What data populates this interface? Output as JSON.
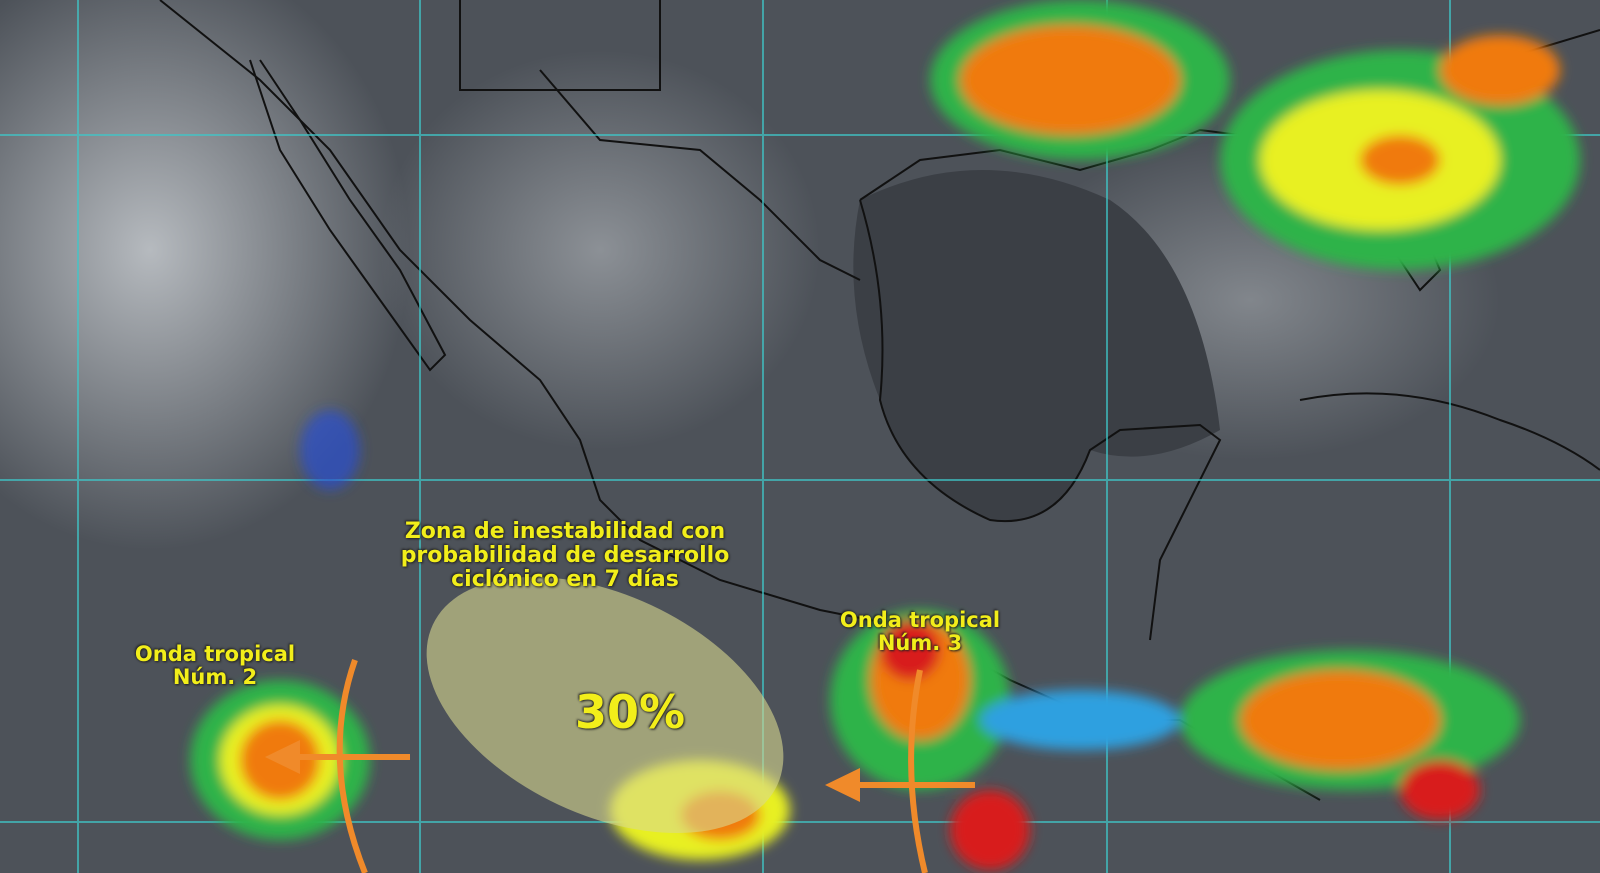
{
  "annotations": {
    "zone": {
      "lines": [
        "Zona de inestabilidad con",
        "probabilidad de desarrollo",
        "ciclónico en 7 días"
      ],
      "probability": "30%"
    },
    "wave2": {
      "lines": [
        "Onda tropical",
        "Núm. 2"
      ]
    },
    "wave3": {
      "lines": [
        "Onda tropical",
        "Núm. 3"
      ]
    }
  },
  "colors": {
    "label": "#f2ee1a",
    "grid": "#3fc7c9",
    "arrow": "#f08a2a",
    "zone_fill": "#d8d890",
    "cloud_scale": [
      "#2a4fd0",
      "#2fa0e0",
      "#2eb34a",
      "#e8f020",
      "#f07a10",
      "#d81e1e",
      "#e0207a"
    ]
  },
  "icons": {
    "wave_arrow": "arrow-left-icon",
    "wave_axis": "arc-icon"
  }
}
